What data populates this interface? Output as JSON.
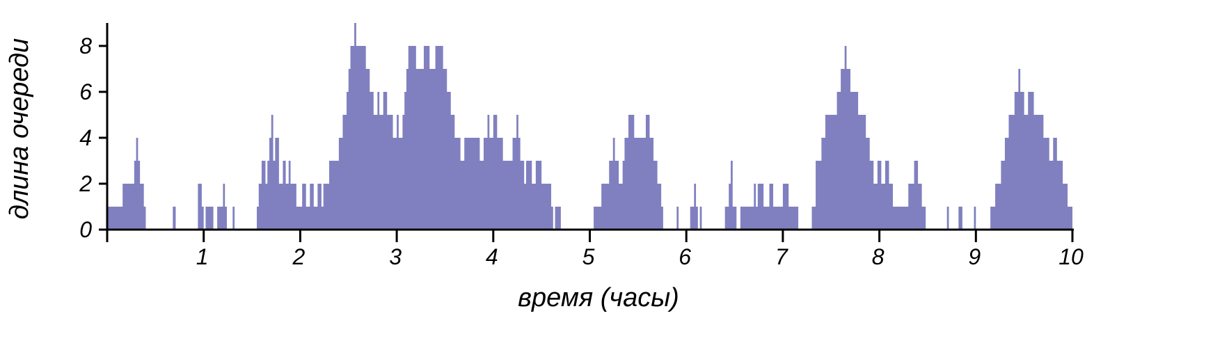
{
  "chart_data": {
    "type": "area",
    "title": "",
    "xlabel": "время (часы)",
    "ylabel": "длина очереди",
    "xlim": [
      0,
      10
    ],
    "ylim": [
      0,
      9
    ],
    "x_ticks": [
      {
        "value": 1,
        "label": "1"
      },
      {
        "value": 2,
        "label": "2"
      },
      {
        "value": 3,
        "label": "3"
      },
      {
        "value": 4,
        "label": "4"
      },
      {
        "value": 5,
        "label": "5"
      },
      {
        "value": 6,
        "label": "6"
      },
      {
        "value": 7,
        "label": "7"
      },
      {
        "value": 8,
        "label": "8"
      },
      {
        "value": 9,
        "label": "9"
      },
      {
        "value": 10,
        "label": "10"
      }
    ],
    "y_ticks": [
      {
        "value": 0,
        "label": "0"
      },
      {
        "value": 2,
        "label": "2"
      },
      {
        "value": 4,
        "label": "4"
      },
      {
        "value": 6,
        "label": "6"
      },
      {
        "value": 8,
        "label": "8"
      }
    ],
    "fill_color": "#8080c0",
    "series": [
      {
        "name": "queue length",
        "steps": [
          [
            0.0,
            1
          ],
          [
            0.16,
            2
          ],
          [
            0.28,
            3
          ],
          [
            0.3,
            4
          ],
          [
            0.32,
            3
          ],
          [
            0.34,
            2
          ],
          [
            0.38,
            1
          ],
          [
            0.4,
            0
          ],
          [
            0.68,
            1
          ],
          [
            0.71,
            0
          ],
          [
            0.94,
            2
          ],
          [
            0.98,
            1
          ],
          [
            1.0,
            0
          ],
          [
            1.02,
            1
          ],
          [
            1.1,
            0
          ],
          [
            1.14,
            1
          ],
          [
            1.2,
            2
          ],
          [
            1.22,
            1
          ],
          [
            1.24,
            0
          ],
          [
            1.3,
            1
          ],
          [
            1.32,
            0
          ],
          [
            1.55,
            1
          ],
          [
            1.57,
            2
          ],
          [
            1.6,
            3
          ],
          [
            1.64,
            2
          ],
          [
            1.66,
            3
          ],
          [
            1.68,
            4
          ],
          [
            1.7,
            5
          ],
          [
            1.72,
            3
          ],
          [
            1.74,
            4
          ],
          [
            1.78,
            2
          ],
          [
            1.82,
            3
          ],
          [
            1.85,
            2
          ],
          [
            1.88,
            3
          ],
          [
            1.9,
            2
          ],
          [
            1.96,
            1
          ],
          [
            2.02,
            2
          ],
          [
            2.06,
            1
          ],
          [
            2.1,
            2
          ],
          [
            2.14,
            1
          ],
          [
            2.18,
            2
          ],
          [
            2.22,
            1
          ],
          [
            2.24,
            2
          ],
          [
            2.3,
            3
          ],
          [
            2.4,
            4
          ],
          [
            2.44,
            5
          ],
          [
            2.48,
            6
          ],
          [
            2.5,
            7
          ],
          [
            2.52,
            8
          ],
          [
            2.56,
            9
          ],
          [
            2.58,
            8
          ],
          [
            2.68,
            7
          ],
          [
            2.72,
            6
          ],
          [
            2.76,
            5
          ],
          [
            2.8,
            6
          ],
          [
            2.82,
            5
          ],
          [
            2.86,
            6
          ],
          [
            2.9,
            5
          ],
          [
            2.96,
            4
          ],
          [
            3.0,
            5
          ],
          [
            3.02,
            4
          ],
          [
            3.06,
            5
          ],
          [
            3.08,
            6
          ],
          [
            3.1,
            7
          ],
          [
            3.12,
            8
          ],
          [
            3.2,
            7
          ],
          [
            3.28,
            8
          ],
          [
            3.34,
            7
          ],
          [
            3.4,
            8
          ],
          [
            3.48,
            7
          ],
          [
            3.52,
            6
          ],
          [
            3.56,
            5
          ],
          [
            3.6,
            4
          ],
          [
            3.66,
            3
          ],
          [
            3.7,
            4
          ],
          [
            3.86,
            3
          ],
          [
            3.9,
            4
          ],
          [
            3.94,
            5
          ],
          [
            3.96,
            4
          ],
          [
            4.0,
            5
          ],
          [
            4.04,
            4
          ],
          [
            4.1,
            3
          ],
          [
            4.2,
            4
          ],
          [
            4.24,
            5
          ],
          [
            4.26,
            4
          ],
          [
            4.28,
            3
          ],
          [
            4.32,
            2
          ],
          [
            4.34,
            3
          ],
          [
            4.4,
            2
          ],
          [
            4.44,
            3
          ],
          [
            4.5,
            2
          ],
          [
            4.6,
            1
          ],
          [
            4.62,
            0
          ],
          [
            4.64,
            1
          ],
          [
            4.7,
            0
          ],
          [
            5.04,
            1
          ],
          [
            5.12,
            2
          ],
          [
            5.2,
            3
          ],
          [
            5.24,
            4
          ],
          [
            5.26,
            3
          ],
          [
            5.3,
            2
          ],
          [
            5.34,
            3
          ],
          [
            5.36,
            4
          ],
          [
            5.4,
            5
          ],
          [
            5.46,
            4
          ],
          [
            5.58,
            5
          ],
          [
            5.62,
            4
          ],
          [
            5.66,
            3
          ],
          [
            5.7,
            2
          ],
          [
            5.74,
            1
          ],
          [
            5.76,
            0
          ],
          [
            5.9,
            1
          ],
          [
            5.92,
            0
          ],
          [
            6.04,
            1
          ],
          [
            6.08,
            2
          ],
          [
            6.1,
            1
          ],
          [
            6.12,
            0
          ],
          [
            6.14,
            1
          ],
          [
            6.16,
            0
          ],
          [
            6.4,
            1
          ],
          [
            6.44,
            2
          ],
          [
            6.46,
            3
          ],
          [
            6.48,
            1
          ],
          [
            6.52,
            0
          ],
          [
            6.56,
            1
          ],
          [
            6.7,
            2
          ],
          [
            6.72,
            1
          ],
          [
            6.74,
            2
          ],
          [
            6.8,
            1
          ],
          [
            6.86,
            2
          ],
          [
            6.9,
            1
          ],
          [
            7.0,
            2
          ],
          [
            7.06,
            1
          ],
          [
            7.16,
            0
          ],
          [
            7.3,
            1
          ],
          [
            7.34,
            3
          ],
          [
            7.4,
            4
          ],
          [
            7.44,
            5
          ],
          [
            7.56,
            6
          ],
          [
            7.6,
            7
          ],
          [
            7.64,
            8
          ],
          [
            7.66,
            7
          ],
          [
            7.7,
            6
          ],
          [
            7.78,
            5
          ],
          [
            7.86,
            4
          ],
          [
            7.9,
            3
          ],
          [
            7.94,
            2
          ],
          [
            7.98,
            3
          ],
          [
            8.02,
            2
          ],
          [
            8.06,
            3
          ],
          [
            8.1,
            2
          ],
          [
            8.14,
            1
          ],
          [
            8.3,
            2
          ],
          [
            8.36,
            3
          ],
          [
            8.4,
            2
          ],
          [
            8.44,
            1
          ],
          [
            8.48,
            0
          ],
          [
            8.7,
            1
          ],
          [
            8.72,
            0
          ],
          [
            8.82,
            1
          ],
          [
            8.86,
            0
          ],
          [
            8.98,
            1
          ],
          [
            9.0,
            0
          ],
          [
            9.15,
            1
          ],
          [
            9.2,
            2
          ],
          [
            9.26,
            3
          ],
          [
            9.3,
            4
          ],
          [
            9.34,
            5
          ],
          [
            9.4,
            6
          ],
          [
            9.44,
            7
          ],
          [
            9.46,
            6
          ],
          [
            9.5,
            5
          ],
          [
            9.54,
            6
          ],
          [
            9.6,
            5
          ],
          [
            9.7,
            4
          ],
          [
            9.76,
            3
          ],
          [
            9.8,
            4
          ],
          [
            9.84,
            3
          ],
          [
            9.9,
            2
          ],
          [
            9.95,
            1
          ],
          [
            10.0,
            0
          ]
        ]
      }
    ]
  }
}
